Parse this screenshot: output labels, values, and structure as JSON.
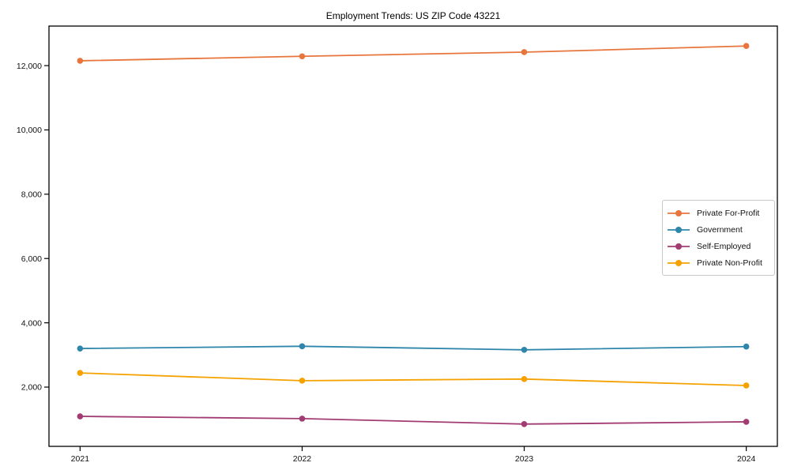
{
  "chart_data": {
    "type": "line",
    "title": "Employment Trends: US ZIP Code 43221",
    "x": [
      2021,
      2022,
      2023,
      2024
    ],
    "categories": [
      "2021",
      "2022",
      "2023",
      "2024"
    ],
    "series": [
      {
        "name": "Private For-Profit",
        "color": "#E8763C",
        "values": [
          12150,
          12290,
          12420,
          12610
        ]
      },
      {
        "name": "Government",
        "color": "#2E86AB",
        "values": [
          3200,
          3270,
          3160,
          3260
        ]
      },
      {
        "name": "Self-Employed",
        "color": "#A23B72",
        "values": [
          1090,
          1020,
          850,
          920
        ]
      },
      {
        "name": "Private Non-Profit",
        "color": "#F5A201",
        "values": [
          2440,
          2200,
          2250,
          2050
        ]
      }
    ],
    "xlabel": "",
    "ylabel": "",
    "xlim": [
      2020.86,
      2024.14
    ],
    "ylim": [
      157,
      13230
    ],
    "yticks": [
      2000,
      4000,
      6000,
      8000,
      10000,
      12000
    ],
    "ytick_labels": [
      "2,000",
      "4,000",
      "6,000",
      "8,000",
      "10,000",
      "12,000"
    ],
    "grid": false,
    "legend_position": "right-center",
    "axis_color": "#000000",
    "background_color": "#ffffff"
  }
}
